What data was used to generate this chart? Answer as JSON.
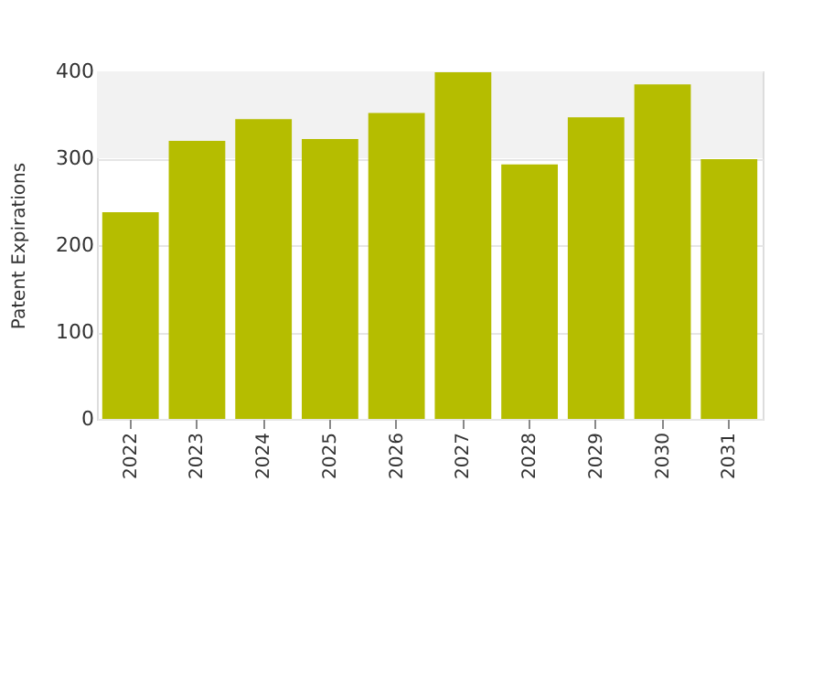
{
  "chart_data": {
    "type": "bar",
    "ylabel": "Patent Expirations",
    "categories": [
      "2022",
      "2023",
      "2024",
      "2025",
      "2026",
      "2027",
      "2028",
      "2029",
      "2030",
      "2031"
    ],
    "values": [
      238,
      320,
      345,
      322,
      352,
      399,
      293,
      347,
      385,
      299
    ],
    "color": "#b5bd00",
    "ylim": [
      0,
      400
    ],
    "yticks": [
      0,
      100,
      200,
      300,
      400
    ],
    "grid": "y",
    "bands": [
      {
        "axis": "y",
        "from": 300,
        "to": 400,
        "color": "#f2f2f2"
      }
    ]
  }
}
